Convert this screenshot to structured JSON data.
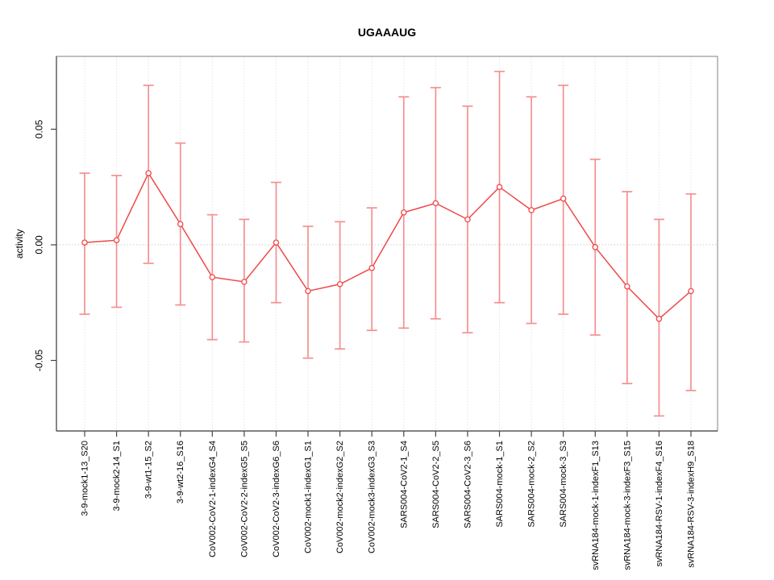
{
  "chart_data": {
    "type": "line",
    "title": "UGAAAUG",
    "ylabel": "activity",
    "xlabel": "",
    "ylim": [
      -0.0805,
      0.0815
    ],
    "yticks": [
      -0.05,
      0,
      0.05
    ],
    "ytick_labels": [
      "-0.05",
      "0.00",
      "0.05"
    ],
    "grid": "vertical dashed line per category, dotted horizontal line at 0",
    "legend_position": "none",
    "categories": [
      "3-9-mock1-13_S20",
      "3-9-mock2-14_S1",
      "3-9-wt1-15_S2",
      "3-9-wt2-16_S16",
      "CoV002-CoV2-1-indexG4_S4",
      "CoV002-CoV2-2-indexG5_S5",
      "CoV002-CoV2-3-indexG6_S6",
      "CoV002-mock1-indexG1_S1",
      "CoV002-mock2-indexG2_S2",
      "CoV002-mock3-indexG3_S3",
      "SARS004-CoV2-1_S4",
      "SARS004-CoV2-2_S5",
      "SARS004-CoV2-3_S6",
      "SARS004-mock-1_S1",
      "SARS004-mock-2_S2",
      "SARS004-mock-3_S3",
      "svRNA184-mock-1-indexF1_S13",
      "svRNA184-mock-3-indexF3_S15",
      "svRNA184-RSV-1-indexF4_S16",
      "svRNA184-RSV-3-indexH9_S18"
    ],
    "series": [
      {
        "name": "activity",
        "values": [
          0.001,
          0.002,
          0.031,
          0.009,
          -0.014,
          -0.016,
          0.001,
          -0.02,
          -0.017,
          -0.01,
          0.014,
          0.018,
          0.011,
          0.025,
          0.015,
          0.02,
          -0.001,
          -0.018,
          -0.032,
          -0.02
        ],
        "upper": [
          0.031,
          0.03,
          0.069,
          0.044,
          0.013,
          0.011,
          0.027,
          0.008,
          0.01,
          0.016,
          0.064,
          0.068,
          0.06,
          0.075,
          0.064,
          0.069,
          0.037,
          0.023,
          0.011,
          0.022
        ],
        "lower": [
          -0.03,
          -0.027,
          -0.008,
          -0.026,
          -0.041,
          -0.042,
          -0.025,
          -0.049,
          -0.045,
          -0.037,
          -0.036,
          -0.032,
          -0.038,
          -0.025,
          -0.034,
          -0.03,
          -0.039,
          -0.06,
          -0.074,
          -0.063
        ]
      }
    ],
    "colors": {
      "line": "#f04848",
      "point": "#f04848",
      "error_bar": "#f49090",
      "grid": "#e2e2e2",
      "zero_line": "#c9c9c9",
      "frame": "#979797",
      "axis": "#454545",
      "text": "#000000"
    }
  }
}
